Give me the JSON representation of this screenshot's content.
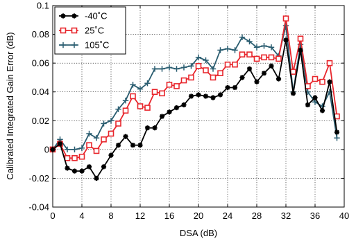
{
  "chart_data": {
    "type": "line",
    "title": "",
    "xlabel": "DSA (dB)",
    "ylabel": "Calibrated Integrated Gain Error (dB)",
    "xlim": [
      0,
      40
    ],
    "ylim": [
      -0.04,
      0.1
    ],
    "x_ticks": [
      "0",
      "4",
      "8",
      "12",
      "16",
      "20",
      "24",
      "28",
      "32",
      "36",
      "40"
    ],
    "y_ticks": [
      "-0.04",
      "-0.02",
      "0",
      "0.02",
      "0.04",
      "0.06",
      "0.08",
      "0.1"
    ],
    "grid": true,
    "legend_position": "top-left",
    "x": [
      0,
      1,
      2,
      3,
      4,
      5,
      6,
      7,
      8,
      9,
      10,
      11,
      12,
      13,
      14,
      15,
      16,
      17,
      18,
      19,
      20,
      21,
      22,
      23,
      24,
      25,
      26,
      27,
      28,
      29,
      30,
      31,
      32,
      33,
      34,
      35,
      36,
      37,
      38,
      39
    ],
    "series": [
      {
        "name": "-40˚C",
        "color": "#000000",
        "marker": "star",
        "values": [
          0.0,
          0.004,
          -0.013,
          -0.015,
          -0.015,
          -0.012,
          -0.02,
          -0.012,
          -0.004,
          0.003,
          0.009,
          0.003,
          0.003,
          0.015,
          0.015,
          0.023,
          0.026,
          0.029,
          0.031,
          0.037,
          0.038,
          0.037,
          0.036,
          0.038,
          0.043,
          0.043,
          0.05,
          0.056,
          0.047,
          0.053,
          0.058,
          0.049,
          0.076,
          0.039,
          0.069,
          0.031,
          0.036,
          0.027,
          0.047,
          0.012
        ]
      },
      {
        "name": "25˚C",
        "color": "#e8262c",
        "marker": "square",
        "values": [
          0.0,
          0.004,
          -0.006,
          -0.006,
          -0.005,
          0.003,
          -0.001,
          0.007,
          0.011,
          0.018,
          0.027,
          0.037,
          0.03,
          0.029,
          0.04,
          0.039,
          0.045,
          0.044,
          0.048,
          0.05,
          0.058,
          0.055,
          0.05,
          0.053,
          0.059,
          0.059,
          0.066,
          0.066,
          0.063,
          0.064,
          0.064,
          0.063,
          0.091,
          0.054,
          0.077,
          0.044,
          0.049,
          0.047,
          0.06,
          0.023
        ]
      },
      {
        "name": "105˚C",
        "color": "#2a5d70",
        "marker": "plus",
        "values": [
          0.0,
          0.007,
          0.0,
          0.0,
          0.001,
          0.011,
          0.008,
          0.018,
          0.02,
          0.028,
          0.034,
          0.045,
          0.042,
          0.046,
          0.056,
          0.056,
          0.057,
          0.056,
          0.057,
          0.058,
          0.064,
          0.062,
          0.056,
          0.069,
          0.07,
          0.069,
          0.078,
          0.075,
          0.071,
          0.072,
          0.071,
          0.065,
          0.086,
          0.04,
          0.073,
          0.04,
          0.033,
          0.03,
          0.04,
          0.008
        ]
      }
    ]
  }
}
